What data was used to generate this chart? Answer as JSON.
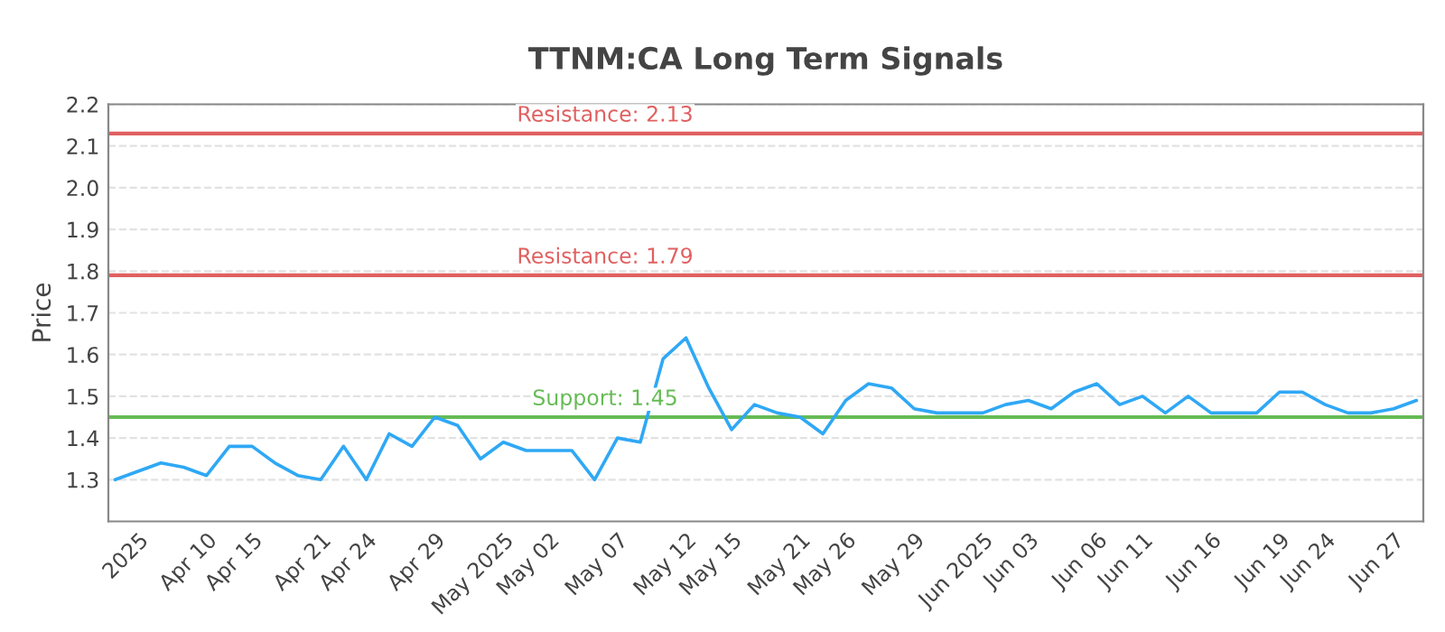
{
  "chart_data": {
    "type": "line",
    "title": "TTNM:CA Long Term Signals",
    "ylabel": "Price",
    "categories": [
      null,
      "2025",
      null,
      null,
      "Apr 10",
      null,
      "Apr 15",
      null,
      null,
      "Apr 21",
      null,
      "Apr 24",
      null,
      null,
      "Apr 29",
      null,
      null,
      "May 2025",
      null,
      "May 02",
      null,
      null,
      "May 07",
      null,
      null,
      "May 12",
      null,
      "May 15",
      null,
      null,
      "May 21",
      null,
      "May 26",
      null,
      null,
      "May 29",
      null,
      null,
      "Jun 2025",
      null,
      "Jun 03",
      null,
      null,
      "Jun 06",
      null,
      "Jun 11",
      null,
      null,
      "Jun 16",
      null,
      null,
      "Jun 19",
      null,
      "Jun 24",
      null,
      null,
      "Jun 27",
      null
    ],
    "series": [
      {
        "color": "#2fa8f5",
        "values": [
          1.3,
          1.32,
          1.34,
          1.33,
          1.31,
          1.38,
          1.38,
          1.34,
          1.31,
          1.3,
          1.38,
          1.3,
          1.41,
          1.38,
          1.45,
          1.43,
          1.35,
          1.39,
          1.37,
          1.37,
          1.37,
          1.3,
          1.4,
          1.39,
          1.59,
          1.64,
          1.52,
          1.42,
          1.48,
          1.46,
          1.45,
          1.41,
          1.49,
          1.53,
          1.52,
          1.47,
          1.46,
          1.46,
          1.46,
          1.48,
          1.49,
          1.47,
          1.51,
          1.53,
          1.48,
          1.5,
          1.46,
          1.5,
          1.46,
          1.46,
          1.46,
          1.51,
          1.51,
          1.48,
          1.46,
          1.46,
          1.47,
          1.49
        ]
      }
    ],
    "ylim": [
      1.2,
      2.2
    ],
    "yticks": [
      1.3,
      1.4,
      1.5,
      1.6,
      1.7,
      1.8,
      1.9,
      {
        "value": 2.0,
        "label": "2.0"
      },
      2.1,
      2.2
    ],
    "ref_lines": [
      {
        "axis": "y",
        "value": 2.13,
        "label": "Resistance: 2.13",
        "color": "#e06060"
      },
      {
        "axis": "y",
        "value": 1.79,
        "label": "Resistance: 1.79",
        "color": "#e06060"
      },
      {
        "axis": "y",
        "value": 1.45,
        "label": "Support: 1.45",
        "color": "#66bb55"
      }
    ],
    "grid": "y",
    "legend": false,
    "marker": "none",
    "line_style": "solid"
  }
}
